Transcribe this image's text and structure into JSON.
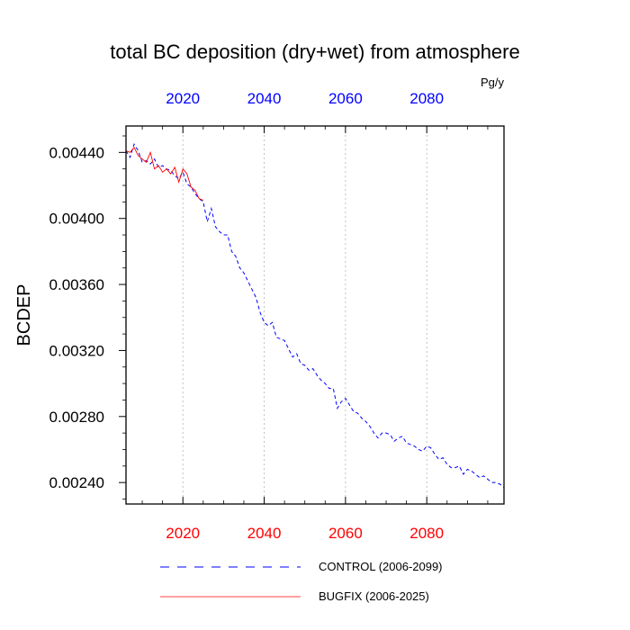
{
  "chart_data": {
    "type": "line",
    "title": "total BC deposition (dry+wet) from atmosphere",
    "units": "Pg/y",
    "ylabel": "BCDEP",
    "xlabel": "",
    "xlim": [
      2006,
      2099
    ],
    "ylim": [
      0.00227,
      0.00456
    ],
    "yticks": [
      0.0024,
      0.0028,
      0.0032,
      0.0036,
      0.004,
      0.0044
    ],
    "ytick_labels": [
      "0.00240",
      "0.00280",
      "0.00320",
      "0.00360",
      "0.00400",
      "0.00440"
    ],
    "xticks": [
      2020,
      2040,
      2060,
      2080
    ],
    "xtick_labels": [
      "2020",
      "2040",
      "2060",
      "2080"
    ],
    "top_axis_color": "#0000ff",
    "bottom_axis_color": "#ff0000",
    "grid": "vertical dotted at x ticks",
    "legend_position": "bottom",
    "series": [
      {
        "name": "CONTROL (2006-2099)",
        "color": "#0000ff",
        "dash": "dashed",
        "x": [
          2006,
          2007,
          2008,
          2009,
          2010,
          2011,
          2012,
          2013,
          2014,
          2015,
          2016,
          2017,
          2018,
          2019,
          2020,
          2021,
          2022,
          2023,
          2024,
          2025,
          2026,
          2027,
          2028,
          2029,
          2030,
          2031,
          2032,
          2033,
          2034,
          2035,
          2036,
          2037,
          2038,
          2039,
          2040,
          2041,
          2042,
          2043,
          2044,
          2045,
          2046,
          2047,
          2048,
          2049,
          2050,
          2051,
          2052,
          2053,
          2054,
          2055,
          2056,
          2057,
          2058,
          2059,
          2060,
          2061,
          2062,
          2063,
          2064,
          2065,
          2066,
          2067,
          2068,
          2069,
          2070,
          2071,
          2072,
          2073,
          2074,
          2075,
          2076,
          2077,
          2078,
          2079,
          2080,
          2081,
          2082,
          2083,
          2084,
          2085,
          2086,
          2087,
          2088,
          2089,
          2090,
          2091,
          2092,
          2093,
          2094,
          2095,
          2096,
          2097,
          2098,
          2099
        ],
        "y": [
          0.00441,
          0.00437,
          0.00445,
          0.00441,
          0.00434,
          0.00435,
          0.00433,
          0.00436,
          0.00431,
          0.00432,
          0.0043,
          0.00429,
          0.00426,
          0.00424,
          0.00428,
          0.00421,
          0.00419,
          0.00415,
          0.00412,
          0.0041,
          0.00398,
          0.00406,
          0.00395,
          0.00392,
          0.0039,
          0.0039,
          0.0038,
          0.00377,
          0.0037,
          0.00367,
          0.00362,
          0.00357,
          0.00352,
          0.00343,
          0.00337,
          0.00335,
          0.00337,
          0.00328,
          0.00327,
          0.00326,
          0.00321,
          0.00316,
          0.00318,
          0.00312,
          0.00311,
          0.00308,
          0.00309,
          0.00305,
          0.00302,
          0.003,
          0.00297,
          0.00297,
          0.00285,
          0.00289,
          0.00291,
          0.00287,
          0.00283,
          0.00282,
          0.00279,
          0.00277,
          0.00274,
          0.0027,
          0.00267,
          0.0027,
          0.0027,
          0.00269,
          0.00265,
          0.00267,
          0.00268,
          0.00264,
          0.00263,
          0.00262,
          0.0026,
          0.00259,
          0.00262,
          0.00261,
          0.00257,
          0.00254,
          0.00255,
          0.00251,
          0.00249,
          0.00249,
          0.0025,
          0.00245,
          0.00248,
          0.00247,
          0.00245,
          0.00243,
          0.00244,
          0.00242,
          0.0024,
          0.0024,
          0.00239,
          0.00237
        ]
      },
      {
        "name": "BUGFIX (2006-2025)",
        "color": "#ff0000",
        "dash": "solid",
        "x": [
          2006,
          2007,
          2008,
          2009,
          2010,
          2011,
          2012,
          2013,
          2014,
          2015,
          2016,
          2017,
          2018,
          2019,
          2020,
          2021,
          2022,
          2023,
          2024,
          2025
        ],
        "y": [
          0.00441,
          0.0044,
          0.00443,
          0.00438,
          0.00436,
          0.00434,
          0.0044,
          0.0043,
          0.00432,
          0.00428,
          0.0043,
          0.00427,
          0.00431,
          0.00422,
          0.0043,
          0.00427,
          0.00419,
          0.00417,
          0.00412,
          0.00411
        ]
      }
    ]
  }
}
